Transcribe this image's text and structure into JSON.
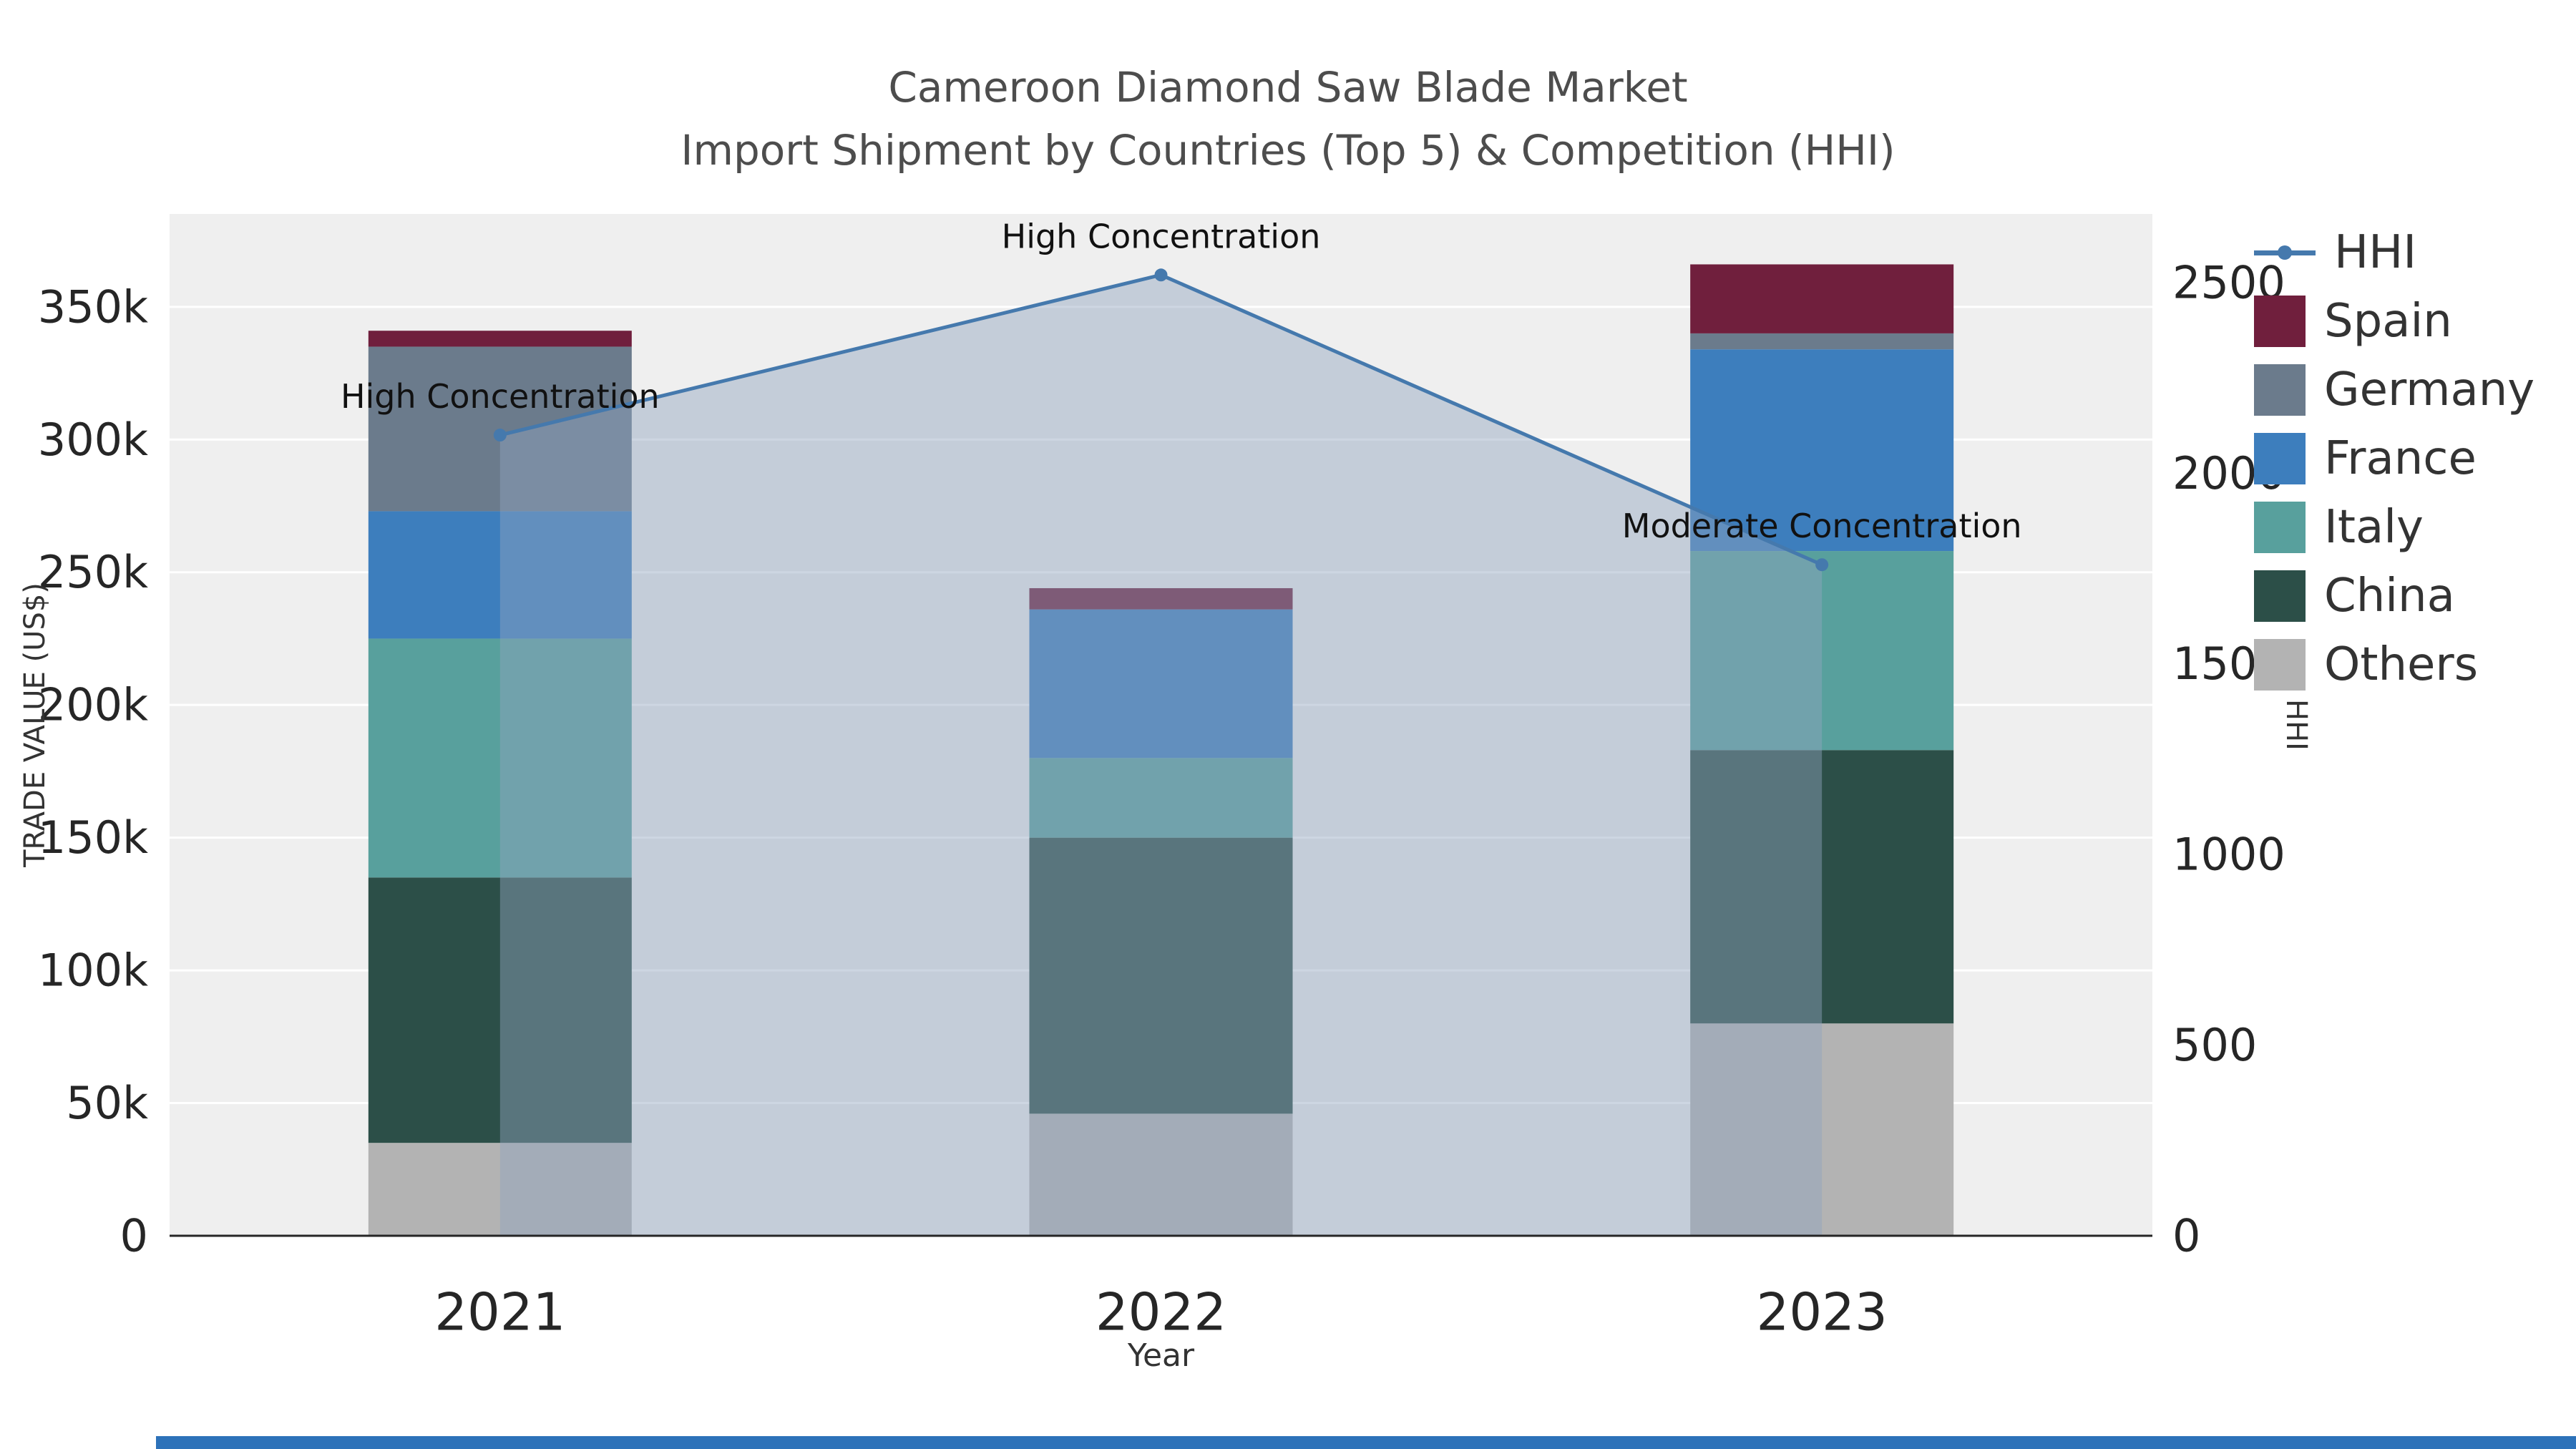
{
  "title": {
    "line1": "Cameroon Diamond Saw Blade Market",
    "line2": "Import Shipment by Countries (Top 5) & Competition (HHI)"
  },
  "chart_data": {
    "type": "bar",
    "subtype": "stacked-bars-with-line-area-overlay",
    "categories": [
      "2021",
      "2022",
      "2023"
    ],
    "xlabel": "Year",
    "ylabel": "TRADE VALUE (US$)",
    "y2label": "HHI",
    "ylim": [
      0,
      385000
    ],
    "y2lim": [
      0,
      2680
    ],
    "grid": true,
    "plot_bg": "#efefef",
    "gridline_color": "#ffffff",
    "axis_text_color": "#262626",
    "series": [
      {
        "name": "Others",
        "color": "#b3b3b3",
        "values": [
          35000,
          46000,
          80000
        ]
      },
      {
        "name": "China",
        "color": "#2c4f48",
        "values": [
          100000,
          104000,
          103000
        ]
      },
      {
        "name": "Italy",
        "color": "#58a09d",
        "values": [
          90000,
          30000,
          75000
        ]
      },
      {
        "name": "France",
        "color": "#3d7ebd",
        "values": [
          48000,
          56000,
          76000
        ]
      },
      {
        "name": "Germany",
        "color": "#6b7b8c",
        "values": [
          62000,
          0,
          6000
        ]
      },
      {
        "name": "Spain",
        "color": "#701f3d",
        "values": [
          6000,
          8000,
          26000
        ]
      }
    ],
    "bar_totals": [
      341000,
      244000,
      366000
    ],
    "hhi_line": {
      "name": "HHI",
      "color": "#4579ad",
      "area_fill": "rgba(144,164,190,0.45)",
      "marker": "circle",
      "values": [
        2100,
        2520,
        1760
      ]
    },
    "annotations": [
      {
        "category": "2021",
        "text": "High Concentration"
      },
      {
        "category": "2022",
        "text": "High Concentration"
      },
      {
        "category": "2023",
        "text": "Moderate Concentration"
      }
    ],
    "yticks": [
      {
        "value": 0,
        "label": "0"
      },
      {
        "value": 50000,
        "label": "50k"
      },
      {
        "value": 100000,
        "label": "100k"
      },
      {
        "value": 150000,
        "label": "150k"
      },
      {
        "value": 200000,
        "label": "200k"
      },
      {
        "value": 250000,
        "label": "250k"
      },
      {
        "value": 300000,
        "label": "300k"
      },
      {
        "value": 350000,
        "label": "350k"
      }
    ],
    "y2ticks": [
      {
        "value": 0,
        "label": "0"
      },
      {
        "value": 500,
        "label": "500"
      },
      {
        "value": 1000,
        "label": "1000"
      },
      {
        "value": 1500,
        "label": "1500"
      },
      {
        "value": 2000,
        "label": "2000"
      },
      {
        "value": 2500,
        "label": "2500"
      }
    ],
    "legend_position": "right-top-outside"
  },
  "legend": {
    "items": [
      {
        "label": "HHI",
        "symbol": "line-marker",
        "color": "#4579ad"
      },
      {
        "label": "Spain",
        "symbol": "square",
        "color": "#701f3d"
      },
      {
        "label": "Germany",
        "symbol": "square",
        "color": "#6b7b8c"
      },
      {
        "label": "France",
        "symbol": "square",
        "color": "#3d7ebd"
      },
      {
        "label": "Italy",
        "symbol": "square",
        "color": "#58a09d"
      },
      {
        "label": "China",
        "symbol": "square",
        "color": "#2c4f48"
      },
      {
        "label": "Others",
        "symbol": "square",
        "color": "#b3b3b3"
      }
    ]
  },
  "misc": {
    "bottom_strip_color": "#2d72b9"
  }
}
